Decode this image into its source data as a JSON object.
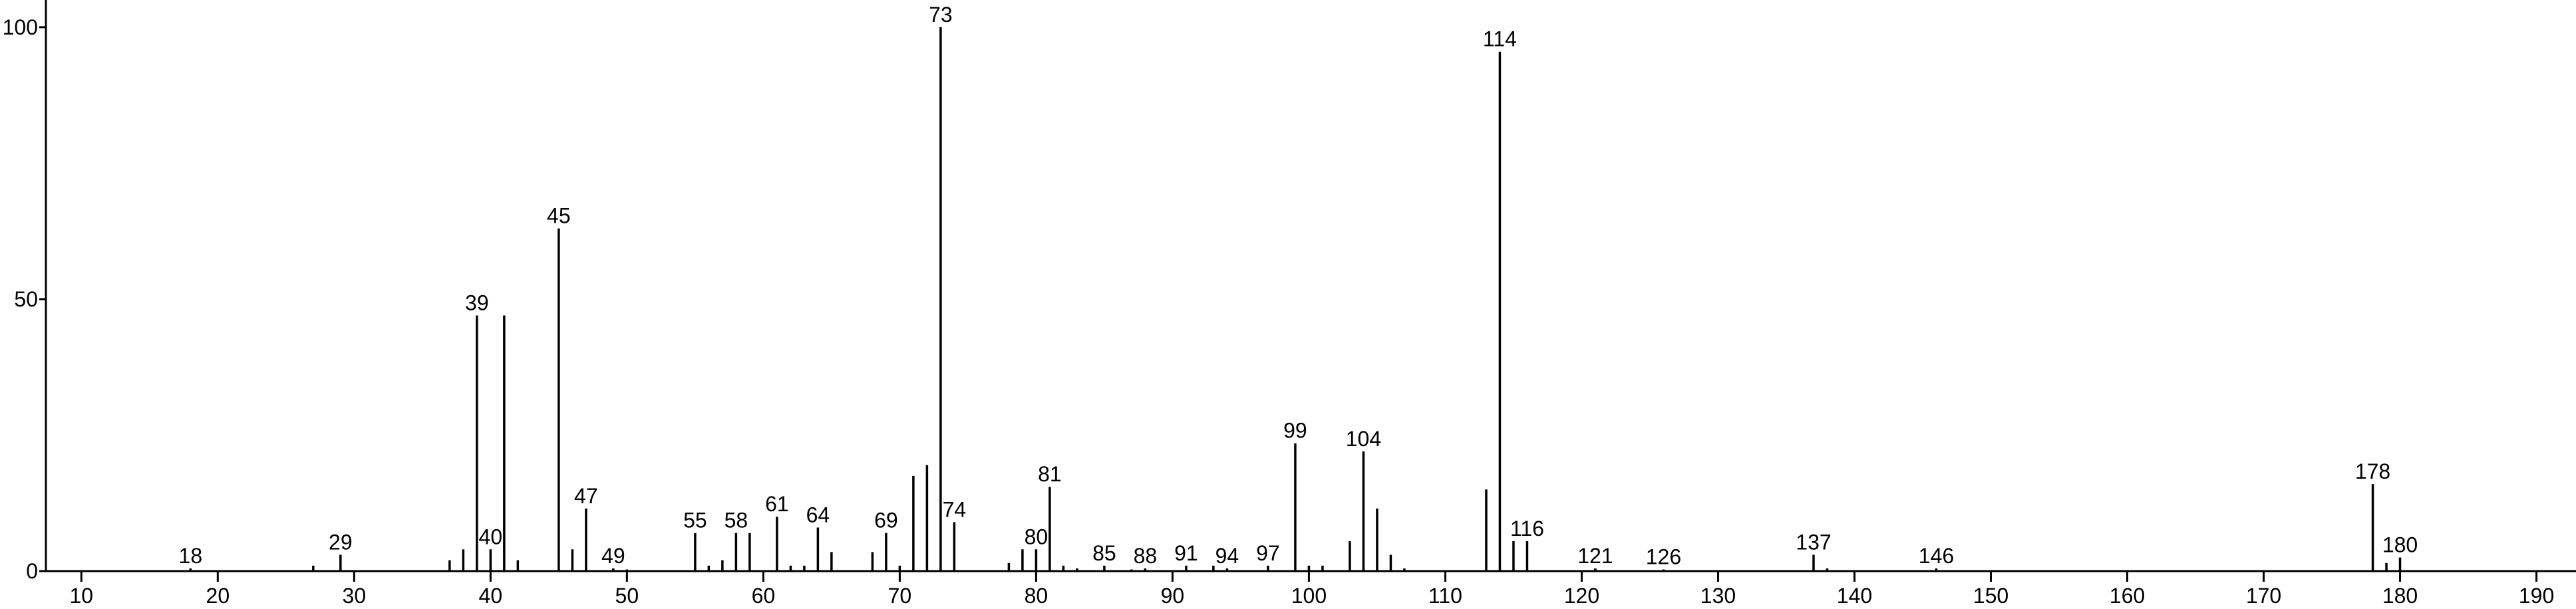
{
  "chart_data": {
    "type": "stick",
    "color": "#000000",
    "x": [
      18,
      27,
      29,
      37,
      38,
      39,
      40,
      41,
      42,
      45,
      46,
      47,
      49,
      50,
      55,
      56,
      57,
      58,
      59,
      61,
      62,
      63,
      64,
      65,
      68,
      69,
      70,
      71,
      72,
      73,
      74,
      78,
      79,
      80,
      81,
      82,
      83,
      85,
      87,
      88,
      91,
      93,
      94,
      97,
      99,
      100,
      101,
      103,
      104,
      105,
      106,
      107,
      113,
      114,
      115,
      116,
      121,
      126,
      137,
      138,
      146,
      178,
      179,
      180
    ],
    "values": [
      0.5,
      1,
      3,
      2,
      4,
      47,
      4,
      47,
      2,
      63,
      4,
      11.5,
      0.5,
      0.3,
      7,
      1,
      2,
      7,
      7,
      10,
      1,
      1,
      8,
      3.5,
      3.5,
      7,
      1,
      17.5,
      19.5,
      100,
      9,
      1.5,
      4,
      4,
      15.5,
      1,
      0.5,
      1,
      0.3,
      0.5,
      1,
      1,
      0.5,
      1,
      23.5,
      1,
      1,
      5.5,
      22,
      11.5,
      3,
      0.5,
      15,
      95.5,
      5.5,
      5.5,
      0.5,
      0.3,
      3,
      0.5,
      0.5,
      16,
      1.5,
      2.5
    ],
    "labels": [
      "18",
      null,
      "29",
      null,
      null,
      "39",
      "40",
      null,
      null,
      "45",
      null,
      "47",
      "49",
      null,
      "55",
      null,
      null,
      "58",
      null,
      "61",
      null,
      null,
      "64",
      null,
      null,
      "69",
      null,
      null,
      null,
      "73",
      "74",
      null,
      null,
      "80",
      "81",
      null,
      null,
      "85",
      null,
      "88",
      "91",
      null,
      "94",
      "97",
      "99",
      null,
      null,
      null,
      "104",
      null,
      null,
      null,
      null,
      "114",
      null,
      "116",
      "121",
      "126",
      "137",
      null,
      "146",
      "178",
      null,
      "180"
    ],
    "xlim": [
      7.4,
      192.9
    ],
    "xticks": [
      10,
      20,
      30,
      40,
      50,
      60,
      70,
      80,
      90,
      100,
      110,
      120,
      130,
      140,
      150,
      160,
      170,
      180,
      190
    ],
    "ylim": [
      0,
      105
    ],
    "yticks": [
      0,
      50,
      100
    ]
  }
}
